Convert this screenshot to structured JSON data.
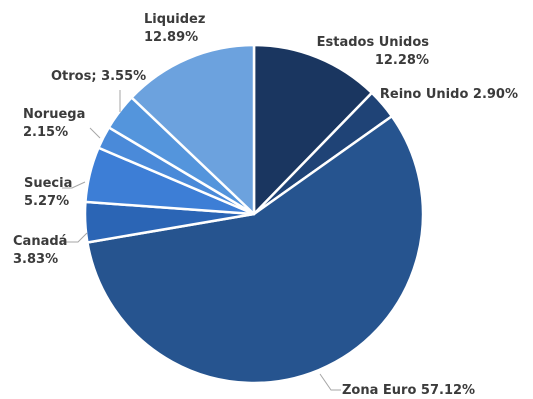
{
  "chart_data": {
    "type": "pie",
    "slices": [
      {
        "label": "Estados Unidos",
        "value": 12.28,
        "value_text": "12.28%",
        "color": "#1a3660"
      },
      {
        "label": "Reino Unido",
        "value": 2.9,
        "value_text": "2.90%",
        "color": "#1f4376"
      },
      {
        "label": "Zona Euro",
        "value": 57.12,
        "value_text": "57.12%",
        "color": "#26548f"
      },
      {
        "label": "Canadá",
        "value": 3.83,
        "value_text": "3.83%",
        "color": "#2b65b5"
      },
      {
        "label": "Suecia",
        "value": 5.27,
        "value_text": "5.27%",
        "color": "#3d7ed6"
      },
      {
        "label": "Noruega",
        "value": 2.15,
        "value_text": "2.15%",
        "color": "#4a8ad9"
      },
      {
        "label": "Otros;",
        "value": 3.55,
        "value_text": "3.55%",
        "color": "#5495dc"
      },
      {
        "label": "Liquidez",
        "value": 12.89,
        "value_text": "12.89%",
        "color": "#6ca2de"
      }
    ],
    "labels": [
      {
        "lines": [
          "Estados Unidos",
          "12.28%"
        ]
      },
      {
        "lines": [
          "Reino Unido 2.90%"
        ]
      },
      {
        "lines": [
          "Zona Euro 57.12%"
        ]
      },
      {
        "lines": [
          "Canadá",
          "3.83%"
        ]
      },
      {
        "lines": [
          "Suecia",
          "5.27%"
        ]
      },
      {
        "lines": [
          "Noruega",
          "2.15%"
        ]
      },
      {
        "lines": [
          "Otros; 3.55%"
        ]
      },
      {
        "lines": [
          "Liquidez",
          "12.89%"
        ]
      }
    ],
    "start_at": "12 o'clock",
    "direction": "clockwise",
    "slice_border_color": "#ffffff",
    "leader_line_color": "#a6a6a6",
    "label_color": "#3b3b3b"
  }
}
